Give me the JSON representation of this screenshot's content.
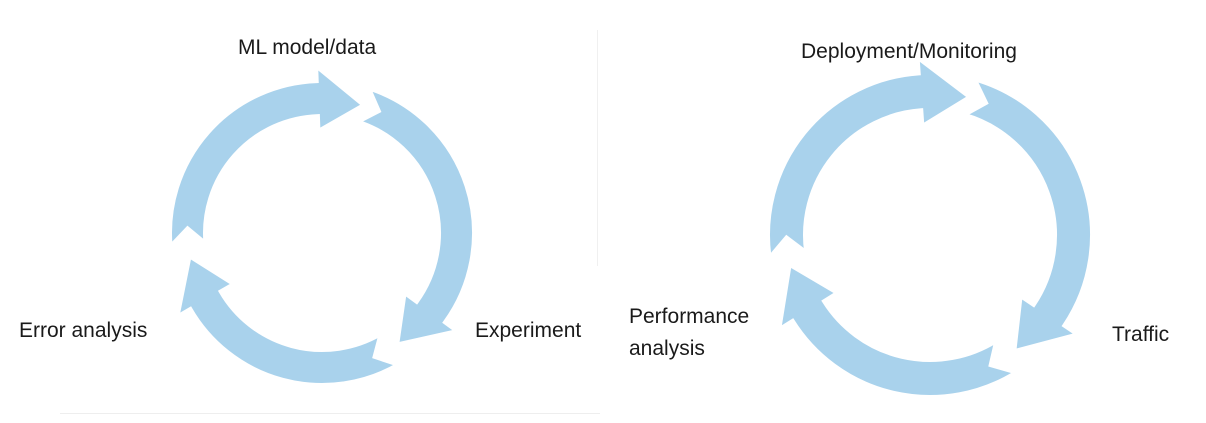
{
  "diagrams": [
    {
      "id": "ml-development-cycle",
      "labels": {
        "top": "ML model/data",
        "right": "Experiment",
        "left": "Error analysis"
      }
    },
    {
      "id": "deployment-cycle",
      "labels": {
        "top": "Deployment/Monitoring",
        "right": "Traffic",
        "left": "Performance\nanalysis"
      }
    }
  ],
  "colors": {
    "arrow_fill": "#a9d2ec",
    "arrow_edge": "#ffffff",
    "text": "#1a1a1a"
  }
}
